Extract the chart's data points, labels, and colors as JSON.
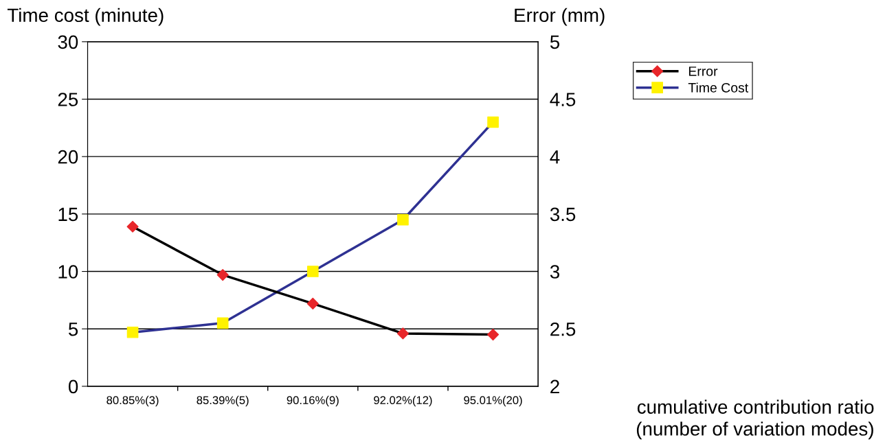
{
  "chart_data": {
    "type": "line",
    "xlabel": "cumulative contribution ratio\n(number of variation modes)",
    "ylabel": "Time cost (minute)",
    "y2label": "Error (mm)",
    "categories": [
      "80.85%(3)",
      "85.39%(5)",
      "90.16%(9)",
      "92.02%(12)",
      "95.01%(20)"
    ],
    "series": [
      {
        "name": "Error",
        "color": "#000000",
        "colors": [
          "#e8262a",
          "#e8262a",
          "#e8262a",
          "#e8262a",
          "#e8262a"
        ],
        "marker": "diamond",
        "axis": "y2",
        "values": [
          3.39,
          2.97,
          2.72,
          2.46,
          2.45
        ]
      },
      {
        "name": "Time Cost",
        "color": "#2e3192",
        "colors": [
          "#fff200",
          "#fff200",
          "#fff200",
          "#fff200",
          "#fff200"
        ],
        "marker": "square",
        "values": [
          4.7,
          5.5,
          10.0,
          14.5,
          23.0
        ]
      }
    ],
    "ylim": [
      0,
      30
    ],
    "yticks": [
      0,
      5,
      10,
      15,
      20,
      25,
      30
    ],
    "y2lim": [
      2,
      5
    ],
    "y2ticks": [
      2,
      2.5,
      3,
      3.5,
      4,
      4.5,
      5
    ],
    "grid": "y",
    "legend": "top right",
    "line_style": "solid"
  }
}
